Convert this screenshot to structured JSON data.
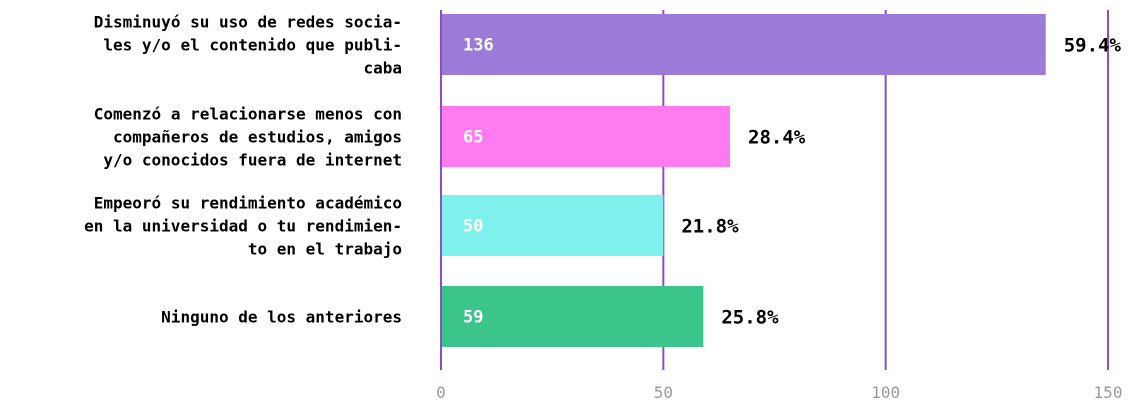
{
  "chart_data": {
    "type": "bar",
    "orientation": "horizontal",
    "categories": [
      "Disminuyó su  uso de redes socia-\nles y/o el contenido que publi-\ncaba",
      "Comenzó a relacionarse menos con\ncompañeros de estudios, amigos\ny/o conocidos fuera de internet",
      "Empeoró su rendimiento académico\nen la universidad o tu rendimien-\nto en el trabajo",
      "Ninguno de los anteriores"
    ],
    "values": [
      136,
      65,
      50,
      59
    ],
    "value_labels": [
      "136",
      "65",
      "50",
      "59"
    ],
    "percent_labels": [
      "59.4%",
      "28.4%",
      "21.8%",
      "25.8%"
    ],
    "colors": [
      "#9b7ad8",
      "#ff7bef",
      "#7ef1ec",
      "#3cc58b"
    ],
    "xlim": [
      0,
      150
    ],
    "ticks": [
      0,
      50,
      100,
      150
    ],
    "tick_labels": [
      "0",
      "50",
      "100",
      "150"
    ],
    "grid": true,
    "grid_color": "#8a4fc7",
    "title": "",
    "xlabel": "",
    "ylabel": ""
  }
}
